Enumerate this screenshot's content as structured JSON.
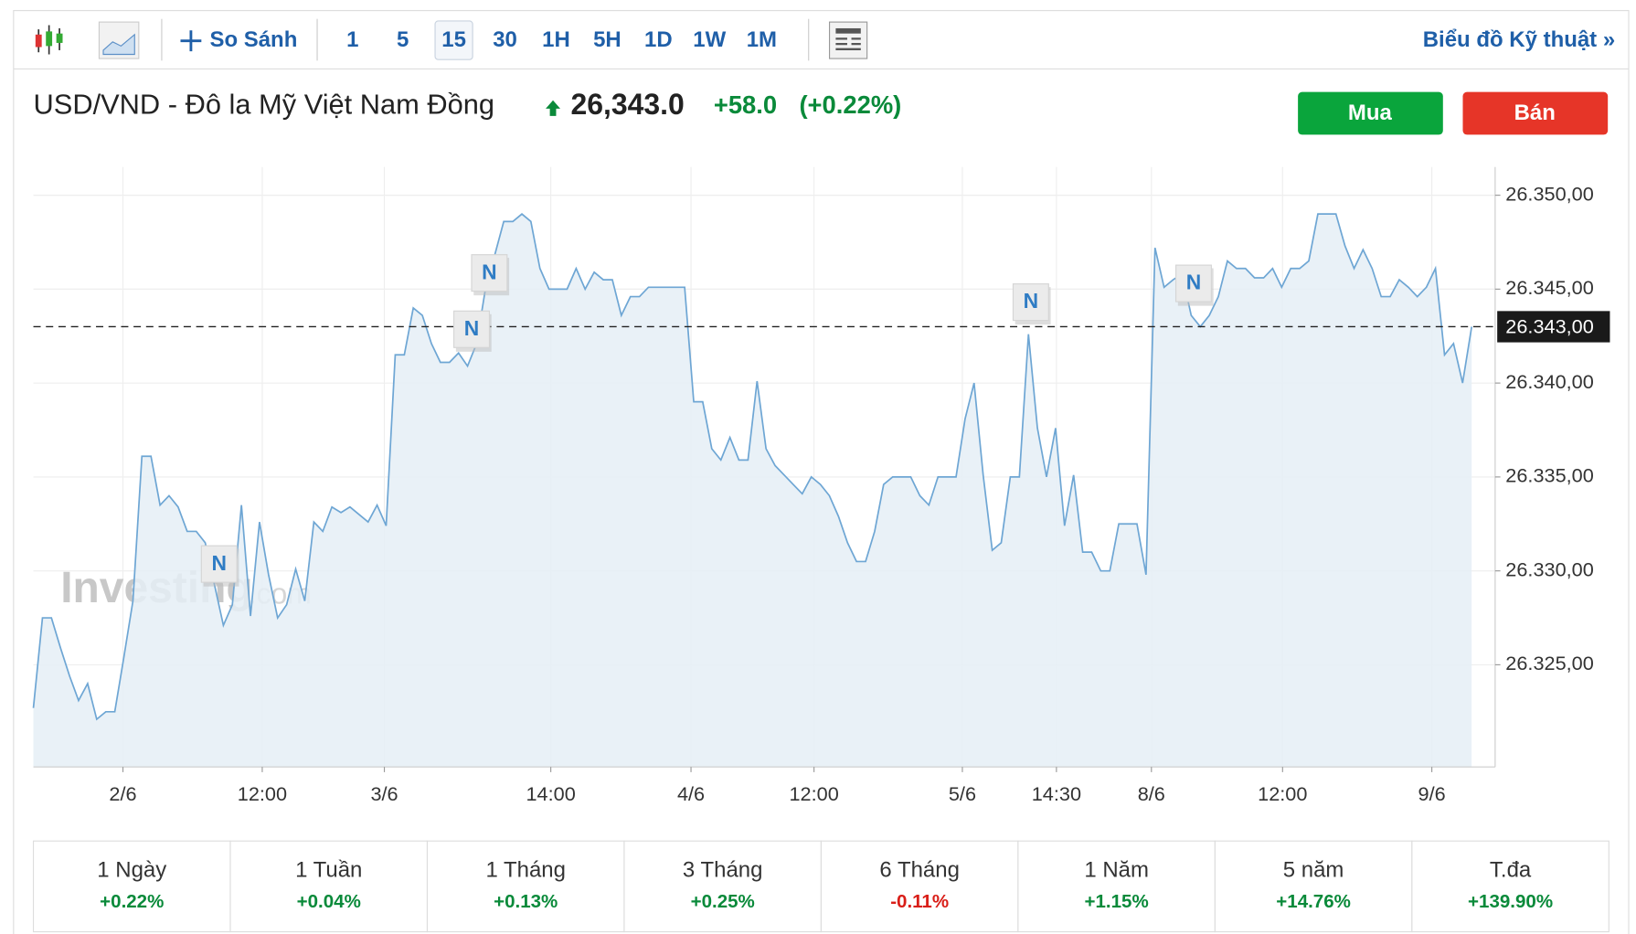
{
  "toolbar": {
    "compare": "So Sánh",
    "intervals": [
      "1",
      "5",
      "15",
      "30",
      "1H",
      "5H",
      "1D",
      "1W",
      "1M"
    ],
    "selected_interval": "15",
    "technical_link": "Biểu đồ Kỹ thuật »"
  },
  "header": {
    "title": "USD/VND - Đô la Mỹ Việt Nam Đồng",
    "price": "26,343.0",
    "change": "+58.0",
    "change_percent": "(+0.22%)",
    "buy": "Mua",
    "sell": "Bán"
  },
  "chart_data": {
    "type": "area",
    "color": "#6ea6d4",
    "fill": "#e5eef6",
    "grid": true,
    "values": [
      26322.7,
      26327.5,
      26327.5,
      26325.9,
      26324.4,
      26323.1,
      26324.0,
      26322.1,
      26322.5,
      26322.5,
      26325.4,
      26328.4,
      26336.1,
      26336.1,
      26333.5,
      26334.0,
      26333.4,
      26332.1,
      26332.1,
      26331.5,
      26329.3,
      26327.1,
      26328.2,
      26333.5,
      26327.6,
      26332.6,
      26329.8,
      26327.5,
      26328.2,
      26330.1,
      26328.4,
      26332.6,
      26332.1,
      26333.4,
      26333.1,
      26333.4,
      26333.0,
      26332.6,
      26333.5,
      26332.4,
      26341.5,
      26341.5,
      26344.0,
      26343.6,
      26342.1,
      26341.1,
      26341.1,
      26341.6,
      26340.9,
      26342.1,
      26345.1,
      26346.8,
      26348.6,
      26348.6,
      26349.0,
      26348.6,
      26346.1,
      26345.0,
      26345.0,
      26345.0,
      26346.1,
      26345.0,
      26345.9,
      26345.5,
      26345.5,
      26343.6,
      26344.6,
      26344.6,
      26345.1,
      26345.1,
      26345.1,
      26345.1,
      26345.1,
      26339.0,
      26339.0,
      26336.5,
      26335.9,
      26337.1,
      26335.9,
      26335.9,
      26340.1,
      26336.5,
      26335.6,
      26335.1,
      26334.6,
      26334.1,
      26335.0,
      26334.6,
      26334.0,
      26332.9,
      26331.5,
      26330.5,
      26330.5,
      26332.1,
      26334.6,
      26335.0,
      26335.0,
      26335.0,
      26334.0,
      26333.5,
      26335.0,
      26335.0,
      26335.0,
      26338.1,
      26340.0,
      26335.1,
      26331.1,
      26331.5,
      26335.0,
      26335.0,
      26342.6,
      26337.6,
      26335.0,
      26337.6,
      26332.4,
      26335.1,
      26331.0,
      26331.0,
      26330.0,
      26330.0,
      26332.5,
      26332.5,
      26332.5,
      26329.8,
      26347.2,
      26345.1,
      26345.5,
      26345.8,
      26343.6,
      26343.0,
      26343.6,
      26344.6,
      26346.5,
      26346.1,
      26346.1,
      26345.6,
      26345.6,
      26346.1,
      26345.1,
      26346.1,
      26346.1,
      26346.5,
      26349.0,
      26349.0,
      26349.0,
      26347.3,
      26346.1,
      26347.1,
      26346.1,
      26344.6,
      26344.6,
      26345.5,
      26345.1,
      26344.6,
      26345.1,
      26346.1,
      26341.5,
      26342.1,
      26340.0,
      26343.0
    ],
    "xlim": [
      0,
      161.6
    ],
    "xticks": [
      {
        "value": 9.9,
        "label": "2/6"
      },
      {
        "value": 25.3,
        "label": "12:00"
      },
      {
        "value": 38.8,
        "label": "3/6"
      },
      {
        "value": 57.2,
        "label": "14:00"
      },
      {
        "value": 72.7,
        "label": "4/6"
      },
      {
        "value": 86.3,
        "label": "12:00"
      },
      {
        "value": 102.7,
        "label": "5/6"
      },
      {
        "value": 113.1,
        "label": "14:30"
      },
      {
        "value": 123.6,
        "label": "8/6"
      },
      {
        "value": 138.1,
        "label": "12:00"
      },
      {
        "value": 154.6,
        "label": "9/6"
      }
    ],
    "ylim": [
      26319.56,
      26351.5
    ],
    "yticks": [
      {
        "value": 26325,
        "label": "26.325,00"
      },
      {
        "value": 26330,
        "label": "26.330,00"
      },
      {
        "value": 26335,
        "label": "26.335,00"
      },
      {
        "value": 26340,
        "label": "26.340,00"
      },
      {
        "value": 26345,
        "label": "26.345,00"
      },
      {
        "value": 26350,
        "label": "26.350,00"
      }
    ],
    "current_price": {
      "value": 26343,
      "label": "26.343,00"
    },
    "news_markers": [
      "N",
      "N",
      "N",
      "N",
      "N"
    ],
    "watermark": [
      "Investing",
      ".com"
    ]
  },
  "periods": [
    {
      "label": "1 Ngày",
      "change": "+0.22%"
    },
    {
      "label": "1 Tuần",
      "change": "+0.04%"
    },
    {
      "label": "1 Tháng",
      "change": "+0.13%"
    },
    {
      "label": "3 Tháng",
      "change": "+0.25%"
    },
    {
      "label": "6 Tháng",
      "change": "-0.11%"
    },
    {
      "label": "1 Năm",
      "change": "+1.15%"
    },
    {
      "label": "5 năm",
      "change": "+14.76%"
    },
    {
      "label": "T.đa",
      "change": "+139.90%"
    }
  ]
}
